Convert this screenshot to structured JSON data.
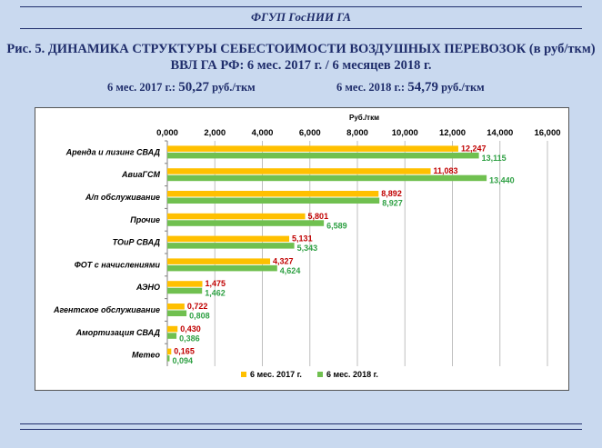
{
  "header": {
    "org": "ФГУП ГосНИИ ГА",
    "title_line1": "Рис. 5. ДИНАМИКА  СТРУКТУРЫ  СЕБЕСТОИМОСТИ  ВОЗДУШНЫХ ПЕРЕВОЗОК  (в руб/ткм)",
    "title_line2": "ВВЛ  ГА РФ:   6 мес. 2017 г. / 6 месяцев 2018 г.",
    "stat2017_label": "6 мес. 2017 г.:",
    "stat2017_value": "50,27",
    "stat2017_unit": "руб./ткм",
    "stat2018_label": "6 мес. 2018 г.:",
    "stat2018_value": "54,79",
    "stat2018_unit": "руб./ткм"
  },
  "colors": {
    "series2017": "#ffc000",
    "series2018": "#70c050",
    "label2017": "#c00000",
    "label2018": "#2ea043",
    "frame": "#1f2d6b"
  },
  "chart_data": {
    "type": "bar",
    "orientation": "horizontal",
    "unit_label": "Руб./ткм",
    "xlim": [
      0,
      16000
    ],
    "xticks": [
      0,
      2000,
      4000,
      6000,
      8000,
      10000,
      12000,
      14000,
      16000
    ],
    "xtick_labels": [
      "0,000",
      "2,000",
      "4,000",
      "6,000",
      "8,000",
      "10,000",
      "12,000",
      "14,000",
      "16,000"
    ],
    "grid": true,
    "legend_position": "bottom",
    "categories": [
      "Аренда и лизинг СВАД",
      "АвиаГСМ",
      "А/п обслуживание",
      "Прочие",
      "ТОиР СВАД",
      "ФОТ с начислениями",
      "АЭНО",
      "Агентское обслуживание",
      "Амортизация СВАД",
      "Метео"
    ],
    "series": [
      {
        "name": "6 мес. 2017 г.",
        "values": [
          12247,
          11083,
          8892,
          5801,
          5131,
          4327,
          1475,
          722,
          430,
          165
        ],
        "labels": [
          "12,247",
          "11,083",
          "8,892",
          "5,801",
          "5,131",
          "4,327",
          "1,475",
          "0,722",
          "0,430",
          "0,165"
        ]
      },
      {
        "name": "6 мес. 2018 г.",
        "values": [
          13115,
          13440,
          8927,
          6589,
          5343,
          4624,
          1462,
          808,
          386,
          94
        ],
        "labels": [
          "13,115",
          "13,440",
          "8,927",
          "6,589",
          "5,343",
          "4,624",
          "1,462",
          "0,808",
          "0,386",
          "0,094"
        ]
      }
    ]
  }
}
